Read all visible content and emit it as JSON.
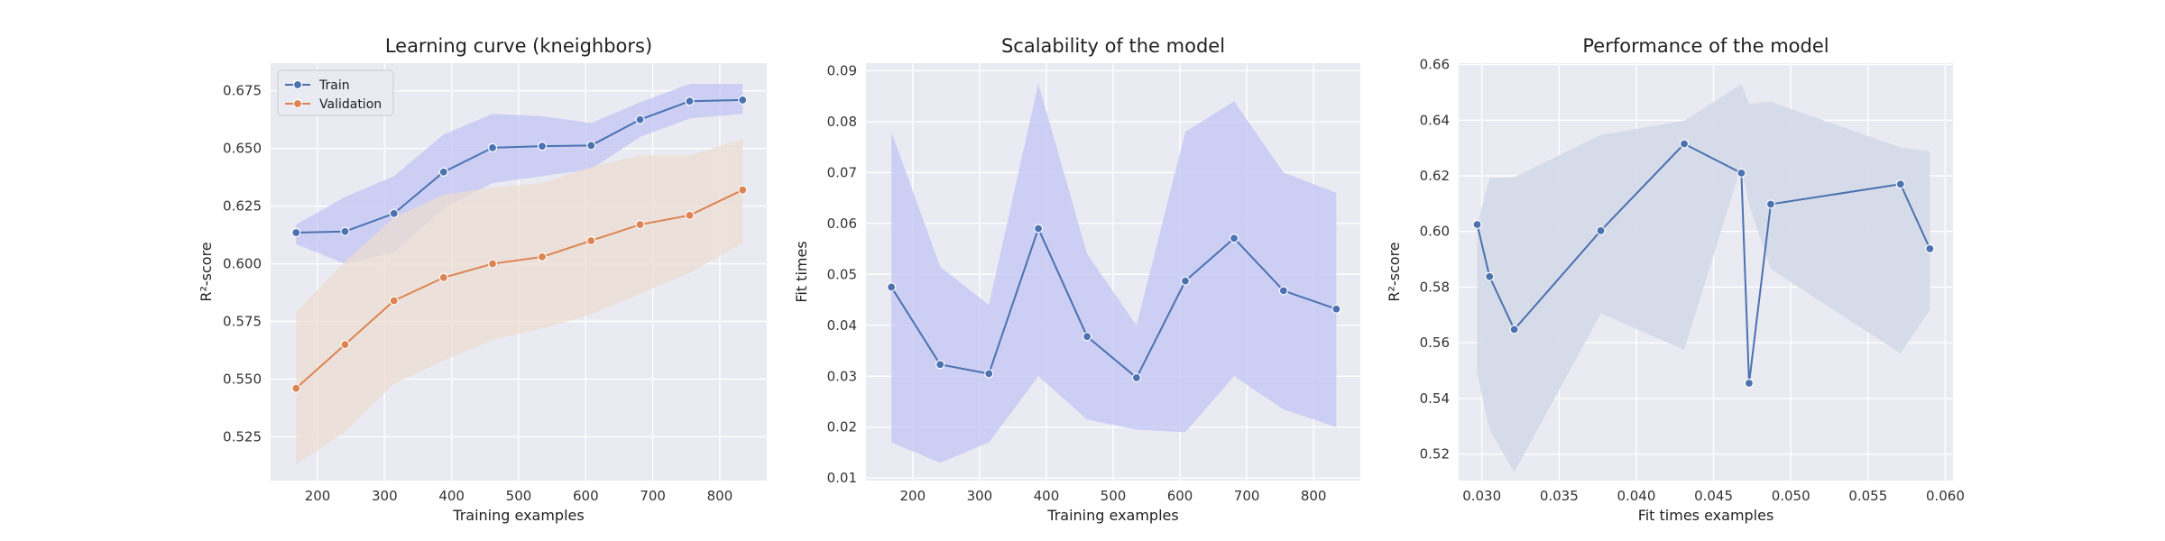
{
  "chart_data": [
    {
      "type": "line",
      "title": "Learning curve (kneighbors)",
      "xlabel": "Training examples",
      "ylabel": "R²-score",
      "xlim": [
        130,
        870
      ],
      "ylim": [
        0.506,
        0.687
      ],
      "xticks": [
        200,
        300,
        400,
        500,
        600,
        700,
        800
      ],
      "yticks": [
        0.525,
        0.55,
        0.575,
        0.6,
        0.625,
        0.65,
        0.675
      ],
      "ytick_format": 3,
      "grid": true,
      "legend": "top-left",
      "x": [
        168,
        241,
        314,
        388,
        461,
        535,
        608,
        681,
        755,
        834
      ],
      "series": [
        {
          "name": "Train",
          "color": "#4c72b0",
          "fill": "#c2c4f4",
          "values": [
            0.6135,
            0.614,
            0.6218,
            0.6398,
            0.6503,
            0.651,
            0.6513,
            0.6625,
            0.6705,
            0.671
          ],
          "lower": [
            0.6085,
            0.6,
            0.605,
            0.624,
            0.635,
            0.638,
            0.641,
            0.655,
            0.663,
            0.665
          ],
          "upper": [
            0.617,
            0.629,
            0.638,
            0.656,
            0.665,
            0.664,
            0.661,
            0.67,
            0.678,
            0.678
          ]
        },
        {
          "name": "Validation",
          "color": "#dd8452",
          "fill": "#ecdcd2",
          "values": [
            0.546,
            0.565,
            0.584,
            0.594,
            0.6,
            0.603,
            0.61,
            0.617,
            0.621,
            0.632
          ],
          "lower": [
            0.513,
            0.527,
            0.548,
            0.558,
            0.567,
            0.572,
            0.578,
            0.587,
            0.596,
            0.609
          ],
          "upper": [
            0.579,
            0.601,
            0.62,
            0.63,
            0.633,
            0.635,
            0.642,
            0.647,
            0.647,
            0.654
          ]
        }
      ]
    },
    {
      "type": "line",
      "title": "Scalability of the model",
      "xlabel": "Training examples",
      "ylabel": "Fit times",
      "xlim": [
        130,
        870
      ],
      "ylim": [
        0.0095,
        0.0915
      ],
      "xticks": [
        200,
        300,
        400,
        500,
        600,
        700,
        800
      ],
      "yticks": [
        0.01,
        0.02,
        0.03,
        0.04,
        0.05,
        0.06,
        0.07,
        0.08,
        0.09
      ],
      "ytick_format": 2,
      "grid": true,
      "x": [
        168,
        241,
        314,
        388,
        461,
        535,
        608,
        681,
        755,
        834
      ],
      "series": [
        {
          "color": "#4c72b0",
          "fill": "#c2c4f4",
          "values": [
            0.0475,
            0.0323,
            0.0305,
            0.059,
            0.0378,
            0.0297,
            0.0487,
            0.0571,
            0.0468,
            0.0432
          ],
          "lower": [
            0.017,
            0.013,
            0.017,
            0.03,
            0.0215,
            0.0195,
            0.019,
            0.03,
            0.0235,
            0.02
          ],
          "upper": [
            0.078,
            0.0515,
            0.044,
            0.0875,
            0.054,
            0.04,
            0.078,
            0.084,
            0.07,
            0.066
          ]
        }
      ]
    },
    {
      "type": "line",
      "title": "Performance of the model",
      "xlabel": "Fit times examples",
      "ylabel": "R²-score",
      "xlim": [
        0.0285,
        0.0605
      ],
      "ylim": [
        0.5105,
        0.6605
      ],
      "xticks": [
        0.03,
        0.035,
        0.04,
        0.045,
        0.05,
        0.055,
        0.06
      ],
      "yticks": [
        0.52,
        0.54,
        0.56,
        0.58,
        0.6,
        0.62,
        0.64,
        0.66
      ],
      "xtick_format": 3,
      "ytick_format": 2,
      "grid": true,
      "series": [
        {
          "color": "#4c72b0",
          "fill": "#d4d9e9",
          "x": [
            0.0297,
            0.0305,
            0.0321,
            0.0377,
            0.0431,
            0.0468,
            0.0473,
            0.0487,
            0.0571,
            0.059
          ],
          "values": [
            0.6025,
            0.5838,
            0.5648,
            0.6003,
            0.6315,
            0.621,
            0.5455,
            0.6098,
            0.617,
            0.5938
          ],
          "band_upper": [
            0.6025,
            0.6192,
            0.6195,
            0.6347,
            0.6398,
            0.653,
            0.6458,
            0.6466,
            0.6302,
            0.6288
          ],
          "band_lower": [
            0.5488,
            0.5288,
            0.5135,
            0.5705,
            0.5575,
            0.6237,
            0.6095,
            0.5865,
            0.5562,
            0.5718
          ]
        }
      ]
    }
  ]
}
